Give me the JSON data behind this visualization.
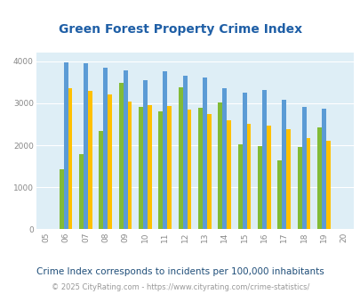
{
  "title": "Green Forest Property Crime Index",
  "years": [
    "05",
    "06",
    "07",
    "08",
    "09",
    "10",
    "11",
    "12",
    "13",
    "14",
    "15",
    "16",
    "17",
    "18",
    "19",
    "20"
  ],
  "green_forest": [
    0,
    1440,
    1800,
    2350,
    3480,
    2920,
    2800,
    3390,
    2900,
    3020,
    2030,
    1980,
    1640,
    1950,
    2420,
    0
  ],
  "arkansas": [
    0,
    3980,
    3960,
    3840,
    3790,
    3560,
    3760,
    3650,
    3610,
    3360,
    3260,
    3310,
    3080,
    2920,
    2870,
    0
  ],
  "national": [
    0,
    3370,
    3300,
    3220,
    3040,
    2960,
    2940,
    2860,
    2740,
    2600,
    2510,
    2460,
    2380,
    2180,
    2100,
    0
  ],
  "color_gf": "#82bb36",
  "color_ar": "#5b9bd5",
  "color_nat": "#ffc000",
  "bg_color": "#deeef6",
  "ylabel_vals": [
    0,
    1000,
    2000,
    3000,
    4000
  ],
  "subtitle": "Crime Index corresponds to incidents per 100,000 inhabitants",
  "footer": "© 2025 CityRating.com - https://www.cityrating.com/crime-statistics/",
  "title_color": "#1f5fa6",
  "subtitle_color": "#1f4e79",
  "footer_color": "#999999",
  "tick_color": "#888888"
}
